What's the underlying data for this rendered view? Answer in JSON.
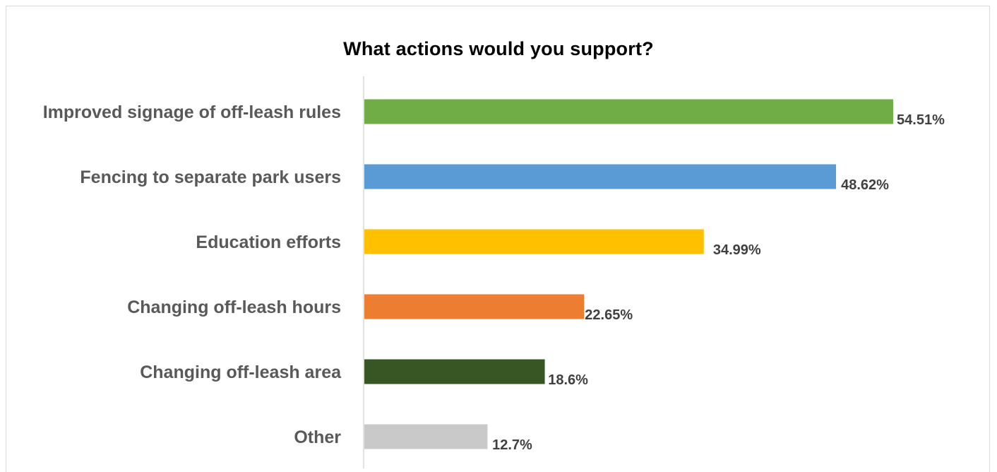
{
  "chart_data": {
    "type": "bar",
    "orientation": "horizontal",
    "title": "What actions would you support?",
    "xlabel": "",
    "ylabel": "",
    "xlim": [
      0,
      60
    ],
    "grid": false,
    "legend": "none",
    "categories": [
      "Improved signage of off-leash rules",
      "Fencing to separate park users",
      "Education efforts",
      "Changing off-leash hours",
      "Changing off-leash area",
      "Other"
    ],
    "values": [
      54.51,
      48.62,
      34.99,
      22.65,
      18.6,
      12.7
    ],
    "value_labels": [
      "54.51%",
      "48.62%",
      "34.99%",
      "22.65%",
      "18.6%",
      "12.7%"
    ],
    "colors": [
      "#70ad47",
      "#5b9bd5",
      "#ffc000",
      "#ed7d31",
      "#375623",
      "#c9c9c9"
    ]
  }
}
